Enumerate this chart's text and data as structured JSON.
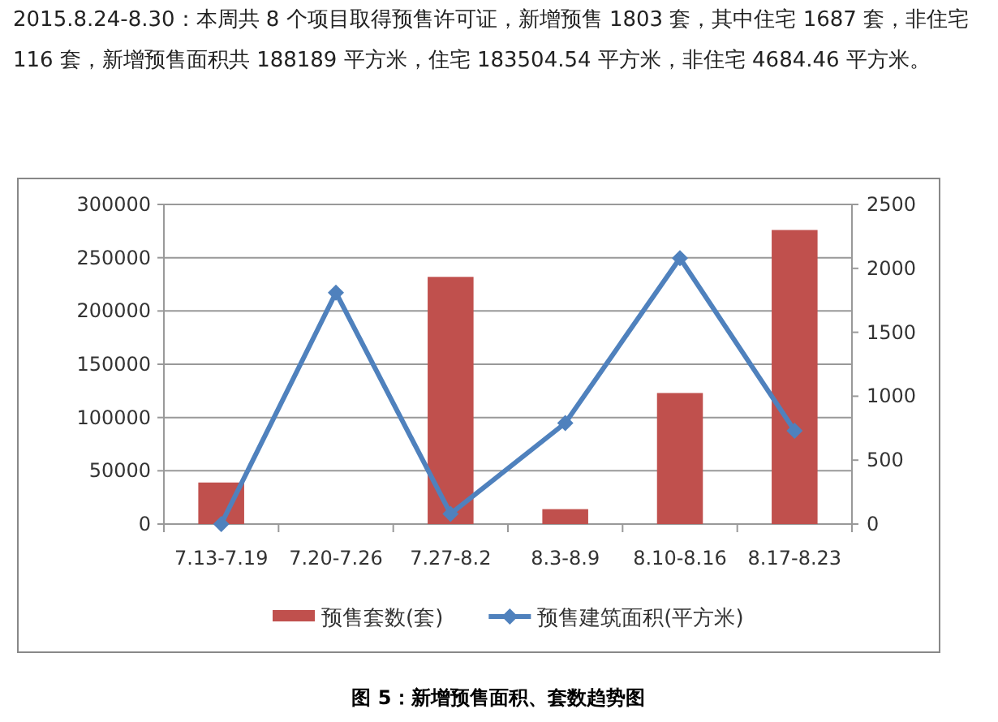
{
  "chart_data": {
    "type": "bar",
    "title": "2015.8.24-8.30：本周共 8 个项目取得预售许可证，新增预售 1803 套，其中住宅 1687 套，非住宅 116 套，新增预售面积共 188189 平方米，住宅 183504.54 平方米，非住宅 4684.46 平方米。",
    "categories": [
      "7.13-7.19",
      "7.20-7.26",
      "7.27-8.2",
      "8.3-8.9",
      "8.10-8.16",
      "8.17-8.23"
    ],
    "series": [
      {
        "name": "预售套数(套)",
        "color": "#c0504d",
        "values": [
          39000,
          null,
          232000,
          14000,
          123000,
          276000
        ]
      },
      {
        "name": "预售建筑面积(平方米)",
        "type": "line",
        "axis": "y2",
        "color": "#4f81bd",
        "marker": "diamond",
        "values": [
          0,
          1810,
          80,
          790,
          2080,
          730
        ]
      }
    ],
    "ylim": [
      0,
      300000
    ],
    "yticks": [
      0,
      50000,
      100000,
      150000,
      200000,
      250000,
      300000
    ],
    "y2lim": [
      0,
      2500
    ],
    "y2ticks": [
      0,
      500,
      1000,
      1500,
      2000,
      2500
    ],
    "grid": "y",
    "legend": "bottom",
    "annotations": [
      "图 5：新增预售面积、套数趋势图"
    ]
  }
}
